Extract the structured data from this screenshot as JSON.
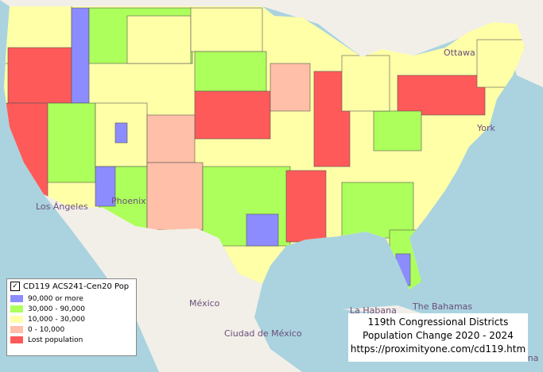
{
  "legend": {
    "title": "CD119  ACS241-Cen20 Pop",
    "checked": true,
    "items": [
      {
        "label": "90,000 or more",
        "color": "#8c8cff"
      },
      {
        "label": "30,000 - 90,000",
        "color": "#adff5c"
      },
      {
        "label": "10,000 - 30,000",
        "color": "#ffffa8"
      },
      {
        "label": "0 - 10,000",
        "color": "#ffbfa8"
      },
      {
        "label": "Lost population",
        "color": "#ff5a5a"
      }
    ]
  },
  "info_box": {
    "lines": [
      "119th Congressional Districts",
      "Population Change 2020 - 2024",
      "https://proximityone.com/cd119.htm"
    ]
  },
  "place_labels": [
    "Ottawa",
    "York",
    "México",
    "Ciudad de México",
    "The Bahamas",
    "La Habana",
    "Dominicana",
    "Los Ángeles",
    "Phoenix"
  ]
}
